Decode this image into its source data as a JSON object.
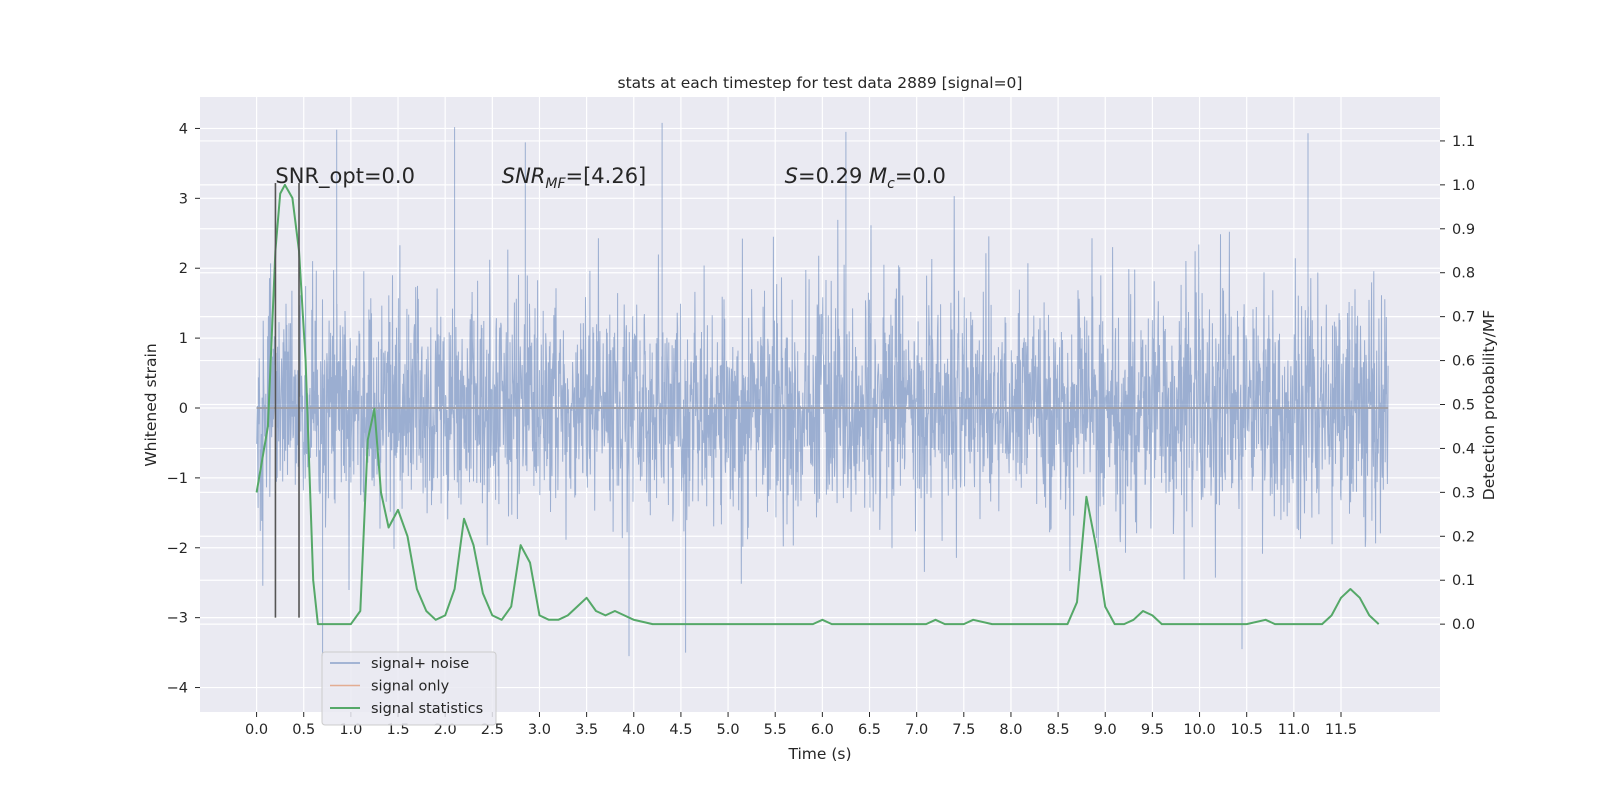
{
  "chart_data": {
    "type": "line",
    "title": "stats at each timestep for test data 2889 [signal=0]",
    "xlabel": "Time (s)",
    "ylabel": "Whitened strain",
    "y2label": "Detection probability/MF",
    "xlim": [
      -0.6,
      12.55
    ],
    "ylim": [
      -4.35,
      4.45
    ],
    "y2lim": [
      -0.2,
      1.2
    ],
    "x_ticks": [
      0.0,
      0.5,
      1.0,
      1.5,
      2.0,
      2.5,
      3.0,
      3.5,
      4.0,
      4.5,
      5.0,
      5.5,
      6.0,
      6.5,
      7.0,
      7.5,
      8.0,
      8.5,
      9.0,
      9.5,
      10.0,
      10.5,
      11.0,
      11.5
    ],
    "x_tick_labels": [
      "0.0",
      "0.5",
      "1.0",
      "1.5",
      "2.0",
      "2.5",
      "3.0",
      "3.5",
      "4.0",
      "4.5",
      "5.0",
      "5.5",
      "6.0",
      "6.5",
      "7.0",
      "7.5",
      "8.0",
      "8.5",
      "9.0",
      "9.5",
      "10.0",
      "10.5",
      "11.0",
      "11.5"
    ],
    "y_ticks": [
      -4,
      -3,
      -2,
      -1,
      0,
      1,
      2,
      3,
      4
    ],
    "y_tick_labels": [
      "−4",
      "−3",
      "−2",
      "−1",
      "0",
      "1",
      "2",
      "3",
      "4"
    ],
    "y2_ticks": [
      0.0,
      0.1,
      0.2,
      0.3,
      0.4,
      0.5,
      0.6,
      0.7,
      0.8,
      0.9,
      1.0,
      1.1
    ],
    "y2_tick_labels": [
      "0.0",
      "0.1",
      "0.2",
      "0.3",
      "0.4",
      "0.5",
      "0.6",
      "0.7",
      "0.8",
      "0.9",
      "1.0",
      "1.1"
    ],
    "grid": true,
    "legend_position": "lower-left",
    "series": [
      {
        "name": "signal+ noise",
        "color": "#4c72b0",
        "x_range": [
          0.0,
          12.0
        ],
        "sample_interval": 0.00390625,
        "typical_range": [
          -1.6,
          1.6
        ],
        "peak_values": [
          {
            "x": 0.85,
            "y": 3.98
          },
          {
            "x": 2.1,
            "y": 4.02
          },
          {
            "x": 2.85,
            "y": 3.8
          },
          {
            "x": 4.3,
            "y": 4.08
          },
          {
            "x": 6.25,
            "y": 3.95
          },
          {
            "x": 11.15,
            "y": 3.93
          },
          {
            "x": 0.7,
            "y": -3.55
          },
          {
            "x": 3.95,
            "y": -3.55
          },
          {
            "x": 4.55,
            "y": -3.5
          },
          {
            "x": 10.45,
            "y": -3.45
          }
        ]
      },
      {
        "name": "signal only",
        "color": "#dd8452",
        "x_range": [
          0.0,
          12.0
        ],
        "y": 0.0
      },
      {
        "name": "signal statistics",
        "color": "#55a868",
        "axis": "right",
        "x": [
          0.0,
          0.12,
          0.2,
          0.25,
          0.3,
          0.38,
          0.45,
          0.52,
          0.6,
          0.65,
          1.0,
          1.1,
          1.18,
          1.25,
          1.32,
          1.4,
          1.5,
          1.6,
          1.7,
          1.8,
          1.9,
          2.0,
          2.1,
          2.2,
          2.3,
          2.4,
          2.5,
          2.6,
          2.7,
          2.8,
          2.9,
          3.0,
          3.1,
          3.2,
          3.3,
          3.4,
          3.5,
          3.6,
          3.7,
          3.8,
          3.9,
          4.0,
          4.2,
          4.5,
          5.0,
          5.5,
          5.9,
          6.0,
          6.1,
          6.3,
          6.5,
          7.0,
          7.1,
          7.2,
          7.3,
          7.5,
          7.6,
          7.8,
          8.0,
          8.2,
          8.5,
          8.6,
          8.7,
          8.8,
          8.9,
          9.0,
          9.1,
          9.2,
          9.3,
          9.4,
          9.5,
          9.6,
          9.8,
          10.0,
          10.3,
          10.5,
          10.7,
          10.8,
          11.0,
          11.3,
          11.4,
          11.5,
          11.6,
          11.7,
          11.8,
          11.9
        ],
        "y": [
          0.3,
          0.45,
          0.85,
          0.98,
          1.0,
          0.97,
          0.85,
          0.6,
          0.1,
          0.0,
          0.0,
          0.03,
          0.42,
          0.49,
          0.3,
          0.22,
          0.26,
          0.2,
          0.08,
          0.03,
          0.01,
          0.02,
          0.08,
          0.24,
          0.18,
          0.07,
          0.02,
          0.01,
          0.04,
          0.18,
          0.14,
          0.02,
          0.01,
          0.01,
          0.02,
          0.04,
          0.06,
          0.03,
          0.02,
          0.03,
          0.02,
          0.01,
          0.0,
          0.0,
          0.0,
          0.0,
          0.0,
          0.01,
          0.0,
          0.0,
          0.0,
          0.0,
          0.0,
          0.01,
          0.0,
          0.0,
          0.01,
          0.0,
          0.0,
          0.0,
          0.0,
          0.0,
          0.05,
          0.29,
          0.18,
          0.04,
          0.0,
          0.0,
          0.01,
          0.03,
          0.02,
          0.0,
          0.0,
          0.0,
          0.0,
          0.0,
          0.01,
          0.0,
          0.0,
          0.0,
          0.02,
          0.06,
          0.08,
          0.06,
          0.02,
          0.0
        ]
      }
    ],
    "vertical_lines": [
      0.2,
      0.45
    ],
    "annotations": [
      {
        "text": "SNR_opt=0.0",
        "x": 0.2,
        "y": 3.22
      },
      {
        "text": "SNRMF=[4.26]",
        "x": 2.6,
        "y": 3.22
      },
      {
        "text": "S=0.29   Mc=0.0",
        "x": 5.6,
        "y": 3.22
      }
    ]
  },
  "legend": {
    "entries": [
      {
        "label": "signal+ noise",
        "color": "#4c72b0"
      },
      {
        "label": "signal only",
        "color": "#dd8452"
      },
      {
        "label": "signal statistics",
        "color": "#55a868"
      }
    ]
  },
  "colors": {
    "plot_background": "#eaeaf2",
    "grid": "#ffffff",
    "text": "#262626",
    "vertical_marker": "#555555"
  }
}
